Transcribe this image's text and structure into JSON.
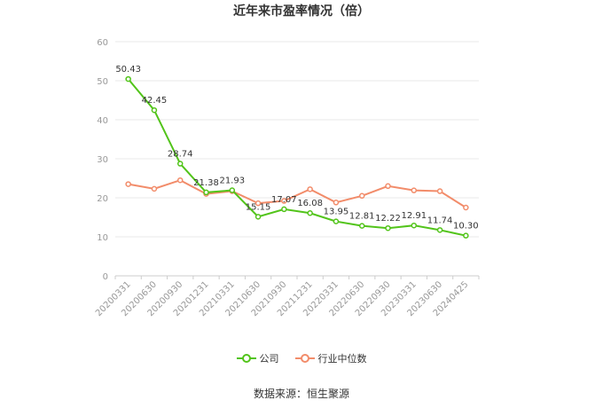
{
  "chart_data": {
    "type": "line",
    "title": "近年来市盈率情况（倍）",
    "categories": [
      "20200331",
      "20200630",
      "20200930",
      "20201231",
      "20210331",
      "20210630",
      "20210930",
      "20211231",
      "20220331",
      "20220630",
      "20220930",
      "20230331",
      "20230630",
      "20240425"
    ],
    "series": [
      {
        "name": "公司",
        "color": "#52c41a",
        "values": [
          50.43,
          42.45,
          28.74,
          21.38,
          21.93,
          15.15,
          17.07,
          16.08,
          13.95,
          12.81,
          12.22,
          12.91,
          11.74,
          10.3
        ],
        "value_labels": [
          "50.43",
          "42.45",
          "28.74",
          "21.38",
          "21.93",
          "15.15",
          "17.07",
          "16.08",
          "13.95",
          "12.81",
          "12.22",
          "12.91",
          "11.74",
          "10.30"
        ]
      },
      {
        "name": "行业中位数",
        "color": "#f28c6a",
        "values": [
          23.5,
          22.3,
          24.5,
          21.0,
          21.7,
          18.6,
          19.2,
          22.2,
          18.8,
          20.5,
          23.0,
          21.9,
          21.7,
          17.5
        ]
      }
    ],
    "yticks": [
      0,
      10,
      20,
      30,
      40,
      50,
      60
    ],
    "ylim": [
      0,
      60
    ],
    "grid": true,
    "legend_position": "bottom",
    "source": "数据来源：恒生聚源"
  }
}
